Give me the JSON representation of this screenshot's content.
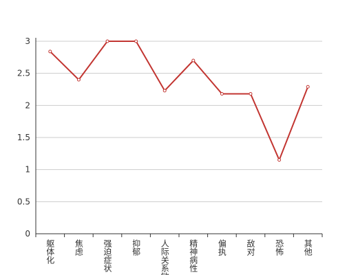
{
  "chart_data": {
    "type": "line",
    "categories": [
      "躯体化",
      "焦虑",
      "强迫症状",
      "抑郁",
      "人际关系敏感",
      "精神病性",
      "偏执",
      "敌对",
      "恐怖",
      "其他"
    ],
    "series": [
      {
        "color": "#c23531",
        "values": [
          2.84,
          2.4,
          3.0,
          3.0,
          2.23,
          2.7,
          2.18,
          2.18,
          1.15,
          2.29
        ]
      }
    ],
    "ylim": [
      0,
      3
    ],
    "yticks": [
      0,
      0.5,
      1,
      1.5,
      2,
      2.5,
      3
    ],
    "grid": true
  }
}
